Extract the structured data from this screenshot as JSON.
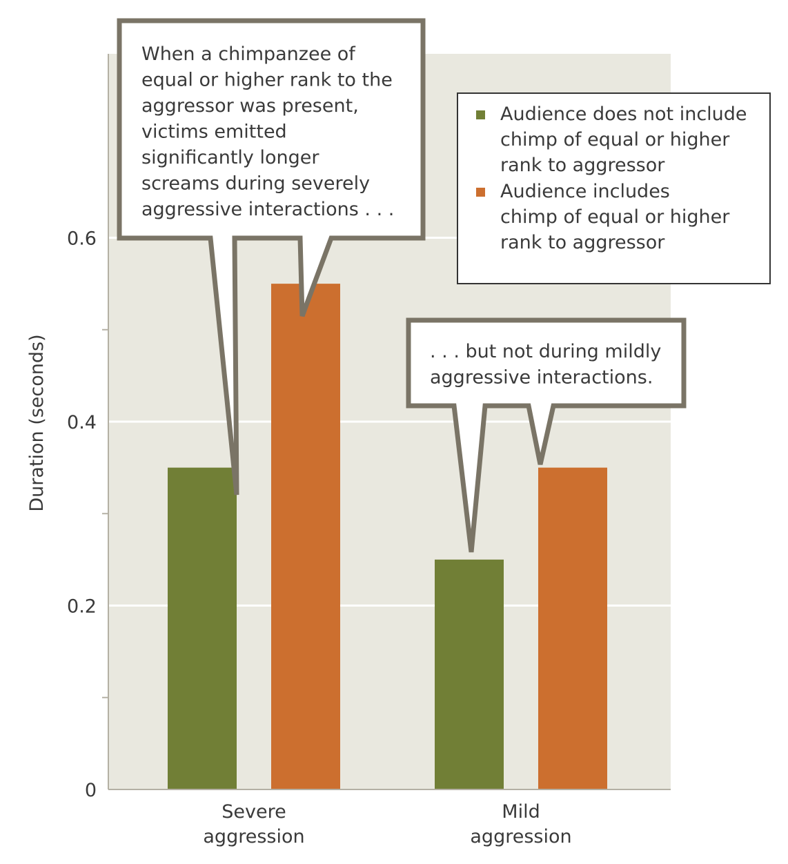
{
  "chart_data": {
    "type": "bar",
    "categories": [
      "Severe aggression",
      "Mild aggression"
    ],
    "category_label_lines": [
      [
        "Severe",
        "aggression"
      ],
      [
        "Mild",
        "aggression"
      ]
    ],
    "series": [
      {
        "name": "Audience does not include chimp of equal or higher rank to aggressor",
        "legend_lines": [
          "Audience does not include",
          "chimp of equal or higher",
          "rank to aggressor"
        ],
        "color": "#717f36",
        "values": [
          0.35,
          0.25
        ]
      },
      {
        "name": "Audience includes chimp of equal or higher rank to aggressor",
        "legend_lines": [
          "Audience includes",
          "chimp of equal or higher",
          "rank to aggressor"
        ],
        "color": "#cc6f2f",
        "values": [
          0.55,
          0.35
        ]
      }
    ],
    "ylabel": "Duration (seconds)",
    "ylim": [
      0,
      0.8
    ],
    "yticks": [
      0,
      0.2,
      0.4,
      0.6
    ],
    "ytick_labels": [
      "0",
      "0.2",
      "0.4",
      "0.6"
    ],
    "grid": true,
    "legend_position": "top-right",
    "annotations": [
      {
        "lines": [
          "When a chimpanzee of",
          "equal or higher rank to the",
          "aggressor was present,",
          "victims emitted",
          "significantly longer",
          "screams during severely",
          "aggressive interactions . . ."
        ]
      },
      {
        "lines": [
          ". . . but not during mildly",
          "aggressive interactions."
        ]
      }
    ]
  },
  "colors": {
    "plot_background": "#e9e8df",
    "grid": "#ffffff",
    "callout_border": "#7a7466"
  }
}
